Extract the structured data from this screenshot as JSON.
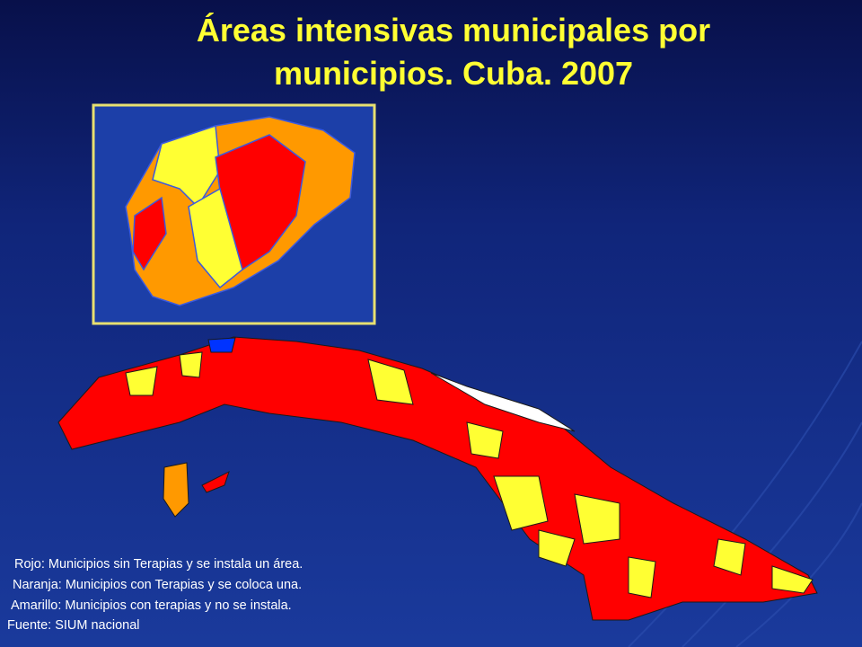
{
  "title": "Áreas intensivas municipales por municipios. Cuba. 2007",
  "legend": [
    "Rojo: Municipios sin Terapias y se instala un área.",
    "Naranja: Municipios con Terapias y se coloca una.",
    "Amarillo: Municipios con terapias y no se instala."
  ],
  "source": "Fuente: SIUM nacional"
}
